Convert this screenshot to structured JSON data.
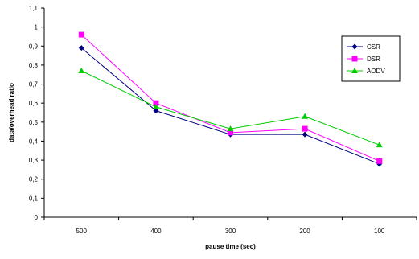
{
  "chart_data": {
    "type": "line",
    "categories": [
      "500",
      "400",
      "300",
      "200",
      "100"
    ],
    "series": [
      {
        "name": "CSR",
        "values": [
          0.89,
          0.56,
          0.435,
          0.435,
          0.28
        ],
        "color": "#000080",
        "marker": "diamond"
      },
      {
        "name": "DSR",
        "values": [
          0.96,
          0.6,
          0.445,
          0.465,
          0.295
        ],
        "color": "#ff00ff",
        "marker": "square"
      },
      {
        "name": "AODV",
        "values": [
          0.77,
          0.58,
          0.465,
          0.53,
          0.38
        ],
        "color": "#00cc00",
        "marker": "triangle"
      }
    ],
    "y_ticks": [
      "0",
      "0,1",
      "0,2",
      "0,3",
      "0,4",
      "0,5",
      "0,6",
      "0,7",
      "0,8",
      "0,9",
      "1",
      "1,1"
    ],
    "ylim": [
      0,
      1.1
    ],
    "xlabel": "pause time (sec)",
    "ylabel": "data/overhead ratio",
    "grid": false,
    "legend_position": "right"
  }
}
